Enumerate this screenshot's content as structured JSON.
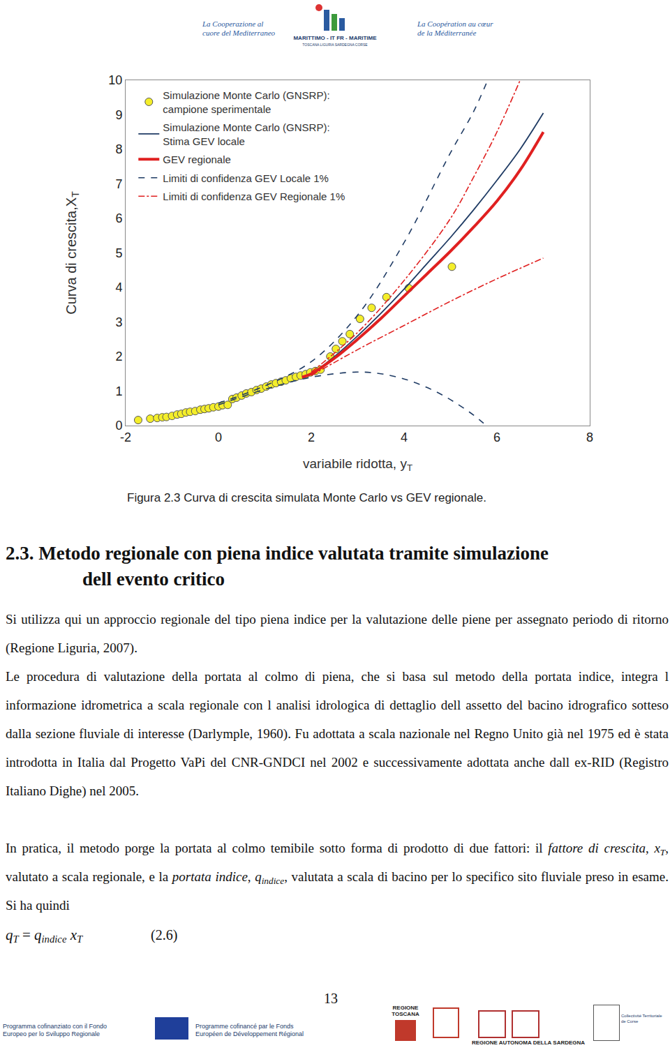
{
  "header": {
    "left": "La Cooperazione al cuore del Mediterraneo",
    "center": "MARITTIMO - IT FR - MARITIME",
    "center_sub": "TOSCANA LIGURIA SARDEGNA CORSE",
    "right": "La Coopération au cœur de la Méditerranée"
  },
  "chart_data": {
    "type": "scatter",
    "x_label": "variabile ridotta, y",
    "x_label_sub": "T",
    "y_label": "Curva di crescita,X",
    "y_label_sub": "T",
    "xlim": [
      -2,
      8
    ],
    "xticks": [
      -2,
      0,
      2,
      4,
      6,
      8
    ],
    "ylim": [
      0,
      10
    ],
    "yticks": [
      0,
      1,
      2,
      3,
      4,
      5,
      6,
      7,
      8,
      9,
      10
    ],
    "grid": false,
    "legend": "upper left",
    "series": [
      {
        "name": "Simulazione Monte Carlo (GNSRP):\ncampione sperimentale",
        "type": "scatter",
        "marker": "circle",
        "color": "#f4ee2a",
        "x": [
          -1.73,
          -1.47,
          -1.32,
          -1.21,
          -1.12,
          -1.0,
          -0.89,
          -0.8,
          -0.7,
          -0.61,
          -0.5,
          -0.39,
          -0.3,
          -0.21,
          -0.11,
          0.0,
          0.09,
          0.2,
          0.3,
          0.39,
          0.5,
          0.6,
          0.71,
          0.82,
          0.92,
          1.03,
          1.14,
          1.24,
          1.35,
          1.45,
          1.56,
          1.67,
          1.77,
          1.88,
          1.98,
          2.09,
          2.2,
          2.41,
          2.53,
          2.67,
          2.83,
          3.05,
          3.3,
          3.62,
          4.1,
          5.03
        ],
        "values": [
          0.16,
          0.2,
          0.22,
          0.24,
          0.25,
          0.28,
          0.32,
          0.34,
          0.38,
          0.4,
          0.42,
          0.46,
          0.48,
          0.5,
          0.53,
          0.55,
          0.59,
          0.6,
          0.77,
          0.81,
          0.87,
          0.93,
          0.97,
          1.03,
          1.07,
          1.13,
          1.19,
          1.23,
          1.27,
          1.31,
          1.37,
          1.41,
          1.45,
          1.49,
          1.54,
          1.58,
          1.62,
          2.0,
          2.22,
          2.44,
          2.65,
          3.09,
          3.41,
          3.72,
          3.98,
          4.6
        ]
      },
      {
        "name": "Simulazione Monte Carlo (GNSRP):\nStima GEV locale",
        "type": "line",
        "line_style": "solid",
        "color": "#1f3b64",
        "x": [
          1.8,
          2,
          2.5,
          3,
          3.5,
          4,
          4.5,
          5,
          5.5,
          6,
          6.5,
          7
        ],
        "values": [
          1.4,
          1.5,
          2.0,
          2.6,
          3.25,
          3.95,
          4.7,
          5.45,
          6.25,
          7.1,
          8.0,
          9.05
        ]
      },
      {
        "name": "GEV regionale",
        "type": "line",
        "line_style": "solid",
        "color": "#e02020",
        "x": [
          1.8,
          2,
          2.5,
          3,
          3.5,
          4,
          4.5,
          5,
          5.5,
          6,
          6.5,
          7
        ],
        "values": [
          1.4,
          1.5,
          1.95,
          2.5,
          3.1,
          3.75,
          4.4,
          5.05,
          5.75,
          6.5,
          7.4,
          8.5
        ]
      },
      {
        "name": "Limiti di confidenza GEV Locale 1%",
        "type": "line",
        "line_style": "dash",
        "color": "#1f3b64",
        "upper": {
          "x": [
            0,
            1,
            2,
            3,
            4,
            5,
            5.5,
            5.8
          ],
          "values": [
            0.65,
            1.15,
            1.85,
            3.2,
            5.3,
            7.9,
            9.1,
            10
          ]
        },
        "lower": {
          "x": [
            0,
            1,
            2,
            3,
            3.5,
            4,
            4.5,
            5,
            5.5,
            5.77
          ],
          "values": [
            0.6,
            1.05,
            1.4,
            1.55,
            1.5,
            1.35,
            1.1,
            0.75,
            0.3,
            0
          ]
        }
      },
      {
        "name": "Limiti di confidenza GEV Regionale 1%",
        "type": "line",
        "line_style": "dashdot",
        "color": "#e02020",
        "upper": {
          "x": [
            2,
            3,
            4,
            5,
            5.5,
            6,
            6.5
          ],
          "values": [
            1.55,
            2.7,
            4.2,
            6.0,
            7.2,
            8.5,
            10
          ]
        },
        "lower": {
          "x": [
            2,
            3,
            4,
            5,
            6,
            7
          ],
          "values": [
            1.45,
            2.2,
            2.9,
            3.6,
            4.25,
            4.85
          ]
        }
      }
    ]
  },
  "caption": "Figura 2.3 Curva di crescita simulata Monte Carlo vs GEV regionale.",
  "section": {
    "lines": [
      "2.3. Metodo regionale con piena indice valutata tramite simulazione",
      "dell evento critico"
    ]
  },
  "paragraphs": [
    [
      {
        "text": "Si utilizza qui un approccio regionale del tipo piena indice per la valutazione delle piene per assegnato periodo di ritorno (Regione Liguria, 2007)."
      }
    ],
    [
      {
        "text": "Le procedura di valutazione della portata al colmo di piena, che si basa sul metodo della portata indice, integra l informazione idrometrica a scala regionale con l analisi idrologica di dettaglio dell assetto del bacino idrografico sotteso dalla sezione fluviale di interesse (Darlymple, 1960). Fu adottata a scala nazionale nel Regno Unito già nel 1975 ed è stata introdotta in Italia dal Progetto VaPi del CNR-GNDCI nel 2002 e successivamente adottata anche dall ex-RID (Registro Italiano Dighe) nel 2005."
      }
    ],
    [
      {
        "text": "In pratica, il metodo porge la portata al colmo temibile sotto forma di prodotto di due fattori: il "
      },
      {
        "text": "fattore di crescita",
        "style": "italic"
      },
      {
        "text": ", "
      },
      {
        "text": "x",
        "style": "italic"
      },
      {
        "text": "T",
        "style": "italic-sub"
      },
      {
        "text": ", valutato a scala regionale, e la "
      },
      {
        "text": "portata indice",
        "style": "italic"
      },
      {
        "text": ", "
      },
      {
        "text": "q",
        "style": "italic"
      },
      {
        "text": "indice",
        "style": "italic-sub"
      },
      {
        "text": ", valutata a scala di bacino per lo specifico sito fluviale preso in esame. Si ha quindi"
      }
    ]
  ],
  "equation": {
    "runs": [
      {
        "text": "q",
        "style": "italic"
      },
      {
        "text": "T",
        "style": "italic-sub"
      },
      {
        "text": " = "
      },
      {
        "text": "q",
        "style": "italic"
      },
      {
        "text": "indice",
        "style": "italic-sub"
      },
      {
        "text": " "
      },
      {
        "text": "x",
        "style": "italic"
      },
      {
        "text": "T",
        "style": "italic-sub"
      }
    ],
    "number": "(2.6)"
  },
  "page_number": "13",
  "footer": {
    "left": "Programma cofinanziato con il Fondo Europeo per lo Sviluppo Regionale",
    "center": "Programme cofinancé par le Fonds Européen de Développement Régional",
    "region_1": "REGIONE TOSCANA",
    "region_2": "REGIONE AUTONOMA DELLA SARDEGNA",
    "region_3": "Collectivité Territoriale de Corse"
  }
}
